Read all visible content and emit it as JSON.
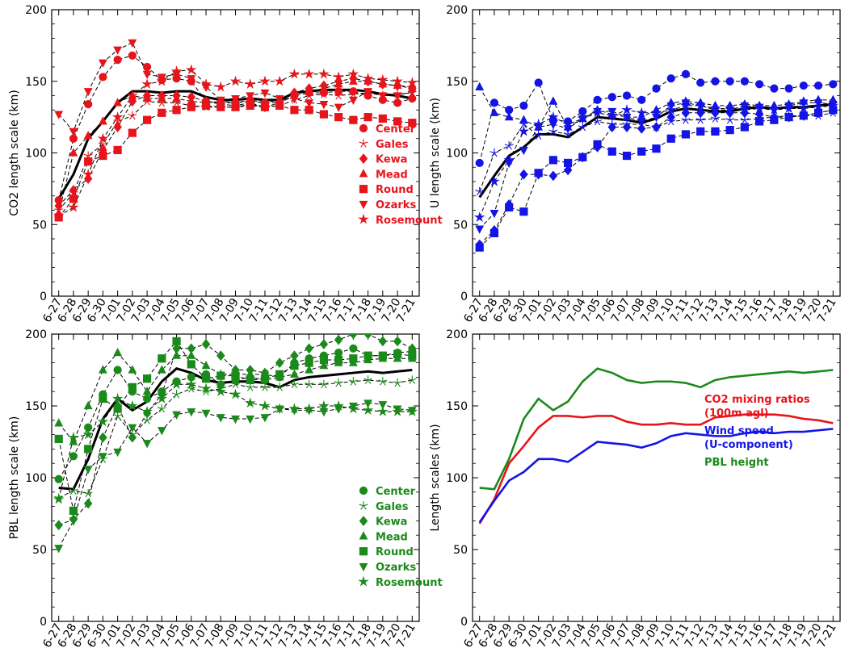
{
  "x_categories": [
    "6-27",
    "6-28",
    "6-29",
    "6-30",
    "7-01",
    "7-02",
    "7-03",
    "7-04",
    "7-05",
    "7-06",
    "7-07",
    "7-08",
    "7-09",
    "7-10",
    "7-11",
    "7-12",
    "7-13",
    "7-14",
    "7-15",
    "7-16",
    "7-17",
    "7-18",
    "7-19",
    "7-20",
    "7-21"
  ],
  "chart_data": [
    {
      "id": "co2",
      "type": "line",
      "ylabel": "CO2 length scale (km)",
      "ylim": [
        0,
        200
      ],
      "yticks": [
        0,
        50,
        100,
        150,
        200
      ],
      "color": "#e8141c",
      "legend_position": "lower-right",
      "series": [
        {
          "name": "Center",
          "marker": "circle",
          "values": [
            67,
            110,
            134,
            153,
            165,
            168,
            160,
            151,
            152,
            150,
            136,
            135,
            135,
            137,
            135,
            135,
            140,
            142,
            142,
            143,
            143,
            140,
            137,
            135,
            138
          ]
        },
        {
          "name": "Gales",
          "marker": "asterisk",
          "values": [
            60,
            72,
            98,
            106,
            122,
            126,
            136,
            135,
            135,
            133,
            132,
            132,
            132,
            134,
            132,
            133,
            137,
            140,
            141,
            140,
            141,
            142,
            140,
            141,
            142
          ]
        },
        {
          "name": "Kewa",
          "marker": "diamond",
          "values": [
            63,
            74,
            82,
            102,
            118,
            136,
            140,
            140,
            140,
            139,
            136,
            134,
            133,
            135,
            132,
            135,
            142,
            145,
            147,
            150,
            152,
            150,
            148,
            147,
            146
          ]
        },
        {
          "name": "Mead",
          "marker": "triangle-up",
          "values": [
            58,
            100,
            112,
            122,
            135,
            140,
            138,
            138,
            138,
            136,
            135,
            136,
            135,
            136,
            135,
            137,
            142,
            143,
            145,
            148,
            150,
            150,
            148,
            147,
            145
          ]
        },
        {
          "name": "Round",
          "marker": "square",
          "values": [
            55,
            68,
            94,
            98,
            102,
            114,
            123,
            128,
            130,
            132,
            133,
            132,
            132,
            133,
            132,
            133,
            130,
            130,
            127,
            125,
            123,
            125,
            124,
            122,
            121
          ]
        },
        {
          "name": "Ozarks",
          "marker": "triangle-down",
          "values": [
            127,
            115,
            143,
            163,
            172,
            177,
            155,
            153,
            155,
            152,
            146,
            137,
            138,
            140,
            142,
            138,
            138,
            135,
            134,
            132,
            137,
            143,
            140,
            140,
            143
          ]
        },
        {
          "name": "Rosemount",
          "marker": "star",
          "values": [
            56,
            62,
            85,
            110,
            125,
            140,
            148,
            150,
            157,
            158,
            148,
            146,
            150,
            148,
            150,
            150,
            155,
            155,
            155,
            153,
            155,
            152,
            151,
            150,
            149
          ]
        },
        {
          "name": "",
          "marker": "none",
          "values": [
            68,
            85,
            110,
            122,
            135,
            143,
            143,
            142,
            143,
            143,
            139,
            137,
            137,
            138,
            137,
            137,
            142,
            143,
            144,
            144,
            144,
            143,
            141,
            140,
            138
          ]
        }
      ]
    },
    {
      "id": "u",
      "type": "line",
      "ylabel": "U length scale (km)",
      "ylim": [
        0,
        200
      ],
      "yticks": [
        0,
        50,
        100,
        150,
        200
      ],
      "color": "#1414e8",
      "legend_position": "lower-right",
      "series": [
        {
          "name": "Center",
          "marker": "circle",
          "values": [
            93,
            135,
            130,
            133,
            149,
            123,
            122,
            129,
            137,
            139,
            140,
            137,
            145,
            152,
            155,
            149,
            150,
            150,
            150,
            148,
            145,
            145,
            147,
            147,
            148
          ]
        },
        {
          "name": "Gales",
          "marker": "asterisk",
          "values": [
            73,
            100,
            105,
            120,
            112,
            115,
            113,
            118,
            122,
            120,
            120,
            120,
            118,
            122,
            123,
            123,
            124,
            123,
            123,
            124,
            125,
            126,
            126,
            126,
            128
          ]
        },
        {
          "name": "Kewa",
          "marker": "diamond",
          "values": [
            36,
            46,
            64,
            85,
            85,
            84,
            88,
            97,
            104,
            118,
            118,
            117,
            118,
            125,
            128,
            128,
            128,
            128,
            128,
            127,
            125,
            125,
            126,
            128,
            130
          ]
        },
        {
          "name": "Mead",
          "marker": "triangle-up",
          "values": [
            146,
            128,
            125,
            123,
            118,
            136,
            118,
            124,
            130,
            127,
            125,
            125,
            130,
            135,
            136,
            135,
            133,
            133,
            134,
            133,
            133,
            134,
            136,
            137,
            137
          ]
        },
        {
          "name": "Round",
          "marker": "square",
          "values": [
            34,
            44,
            62,
            59,
            86,
            95,
            93,
            97,
            106,
            101,
            98,
            101,
            103,
            110,
            113,
            115,
            115,
            116,
            118,
            122,
            123,
            125,
            126,
            128,
            130
          ]
        },
        {
          "name": "Ozarks",
          "marker": "triangle-down",
          "values": [
            47,
            58,
            93,
            102,
            118,
            120,
            117,
            124,
            129,
            129,
            125,
            122,
            125,
            133,
            135,
            133,
            130,
            130,
            133,
            132,
            130,
            133,
            135,
            135,
            134
          ]
        },
        {
          "name": "Rosemount",
          "marker": "star",
          "values": [
            55,
            80,
            95,
            115,
            120,
            125,
            120,
            124,
            128,
            126,
            130,
            128,
            128,
            130,
            133,
            133,
            131,
            131,
            130,
            131,
            130,
            131,
            131,
            132,
            133
          ]
        },
        {
          "name": "",
          "marker": "none",
          "values": [
            69,
            84,
            98,
            104,
            113,
            113,
            111,
            118,
            125,
            124,
            123,
            121,
            124,
            129,
            131,
            130,
            129,
            129,
            131,
            132,
            131,
            132,
            132,
            133,
            134
          ]
        }
      ]
    },
    {
      "id": "pbl",
      "type": "line",
      "ylabel": "PBL length scale (km)",
      "ylim": [
        0,
        200
      ],
      "yticks": [
        0,
        50,
        100,
        150,
        200
      ],
      "color": "#1a8a1a",
      "legend_position": "lower-right",
      "series": [
        {
          "name": "Center",
          "marker": "circle",
          "values": [
            99,
            115,
            135,
            158,
            175,
            160,
            155,
            160,
            167,
            170,
            172,
            165,
            168,
            170,
            168,
            170,
            180,
            183,
            185,
            187,
            190,
            185,
            185,
            187,
            188
          ]
        },
        {
          "name": "Gales",
          "marker": "asterisk",
          "values": [
            86,
            91,
            89,
            113,
            143,
            130,
            140,
            148,
            158,
            162,
            160,
            162,
            165,
            163,
            163,
            163,
            165,
            165,
            165,
            166,
            167,
            168,
            167,
            166,
            168
          ]
        },
        {
          "name": "Kewa",
          "marker": "diamond",
          "values": [
            67,
            71,
            82,
            128,
            150,
            128,
            145,
            158,
            190,
            190,
            193,
            185,
            175,
            175,
            173,
            180,
            185,
            190,
            193,
            196,
            200,
            200,
            195,
            195,
            190
          ]
        },
        {
          "name": "Mead",
          "marker": "triangle-up",
          "values": [
            138,
            125,
            150,
            175,
            187,
            175,
            160,
            175,
            185,
            185,
            178,
            172,
            172,
            172,
            172,
            170,
            172,
            175,
            178,
            180,
            180,
            182,
            183,
            183,
            183
          ]
        },
        {
          "name": "Round",
          "marker": "square",
          "values": [
            127,
            77,
            120,
            155,
            148,
            163,
            169,
            183,
            195,
            179,
            169,
            171,
            171,
            168,
            169,
            172,
            178,
            180,
            182,
            182,
            183,
            185,
            185,
            186,
            185
          ]
        },
        {
          "name": "Ozarks",
          "marker": "triangle-down",
          "values": [
            51,
            70,
            106,
            115,
            118,
            135,
            124,
            133,
            144,
            146,
            145,
            142,
            141,
            141,
            142,
            148,
            147,
            147,
            146,
            148,
            150,
            152,
            151,
            148,
            147
          ]
        },
        {
          "name": "Rosemount",
          "marker": "star",
          "values": [
            85,
            128,
            130,
            139,
            155,
            150,
            146,
            155,
            165,
            165,
            162,
            160,
            158,
            152,
            150,
            148,
            148,
            148,
            150,
            150,
            148,
            147,
            146,
            146,
            146
          ]
        },
        {
          "name": "",
          "marker": "none",
          "values": [
            93,
            92,
            113,
            141,
            155,
            147,
            153,
            167,
            176,
            173,
            168,
            166,
            167,
            167,
            166,
            163,
            168,
            170,
            171,
            172,
            173,
            174,
            173,
            174,
            175
          ]
        }
      ]
    },
    {
      "id": "combined",
      "type": "line",
      "ylabel": "Length scales (km)",
      "ylim": [
        0,
        200
      ],
      "yticks": [
        0,
        50,
        100,
        150,
        200
      ],
      "legend_position": "right",
      "series": [
        {
          "name": "CO2 mixing ratios\n(100m agl)",
          "color": "#e8141c",
          "values": [
            68,
            85,
            110,
            122,
            135,
            143,
            143,
            142,
            143,
            143,
            139,
            137,
            137,
            138,
            137,
            137,
            142,
            143,
            144,
            144,
            144,
            143,
            141,
            140,
            138
          ]
        },
        {
          "name": "Wind speed\n(U-component)",
          "color": "#1414e8",
          "values": [
            69,
            84,
            98,
            104,
            113,
            113,
            111,
            118,
            125,
            124,
            123,
            121,
            124,
            129,
            131,
            130,
            129,
            129,
            131,
            132,
            131,
            132,
            132,
            133,
            134
          ]
        },
        {
          "name": "PBL height",
          "color": "#1a8a1a",
          "values": [
            93,
            92,
            113,
            141,
            155,
            147,
            153,
            167,
            176,
            173,
            168,
            166,
            167,
            167,
            166,
            163,
            168,
            170,
            171,
            172,
            173,
            174,
            173,
            174,
            175
          ]
        }
      ]
    }
  ]
}
